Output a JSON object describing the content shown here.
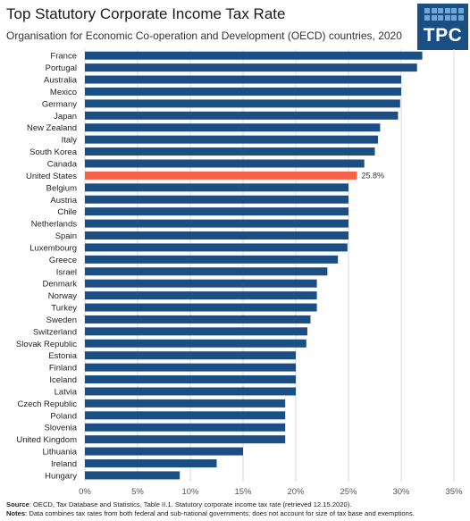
{
  "header": {
    "title": "Top Statutory Corporate Income Tax Rate",
    "subtitle": "Organisation for Economic Co-operation and Development (OECD) countries, 2020",
    "logo_text": "TPC"
  },
  "chart_data": {
    "type": "bar",
    "orientation": "horizontal",
    "categories": [
      "France",
      "Portugal",
      "Australia",
      "Mexico",
      "Germany",
      "Japan",
      "New Zealand",
      "Italy",
      "South Korea",
      "Canada",
      "United States",
      "Belgium",
      "Austria",
      "Chile",
      "Netherlands",
      "Spain",
      "Luxembourg",
      "Greece",
      "Israel",
      "Denmark",
      "Norway",
      "Turkey",
      "Sweden",
      "Switzerland",
      "Slovak Republic",
      "Estonia",
      "Finland",
      "Iceland",
      "Latvia",
      "Czech Republic",
      "Poland",
      "Slovenia",
      "United Kingdom",
      "Lithuania",
      "Ireland",
      "Hungary"
    ],
    "values": [
      32.0,
      31.5,
      30.0,
      30.0,
      29.9,
      29.7,
      28.0,
      27.8,
      27.5,
      26.5,
      25.8,
      25.0,
      25.0,
      25.0,
      25.0,
      25.0,
      24.9,
      24.0,
      23.0,
      22.0,
      22.0,
      22.0,
      21.4,
      21.1,
      21.0,
      20.0,
      20.0,
      20.0,
      20.0,
      19.0,
      19.0,
      19.0,
      19.0,
      15.0,
      12.5,
      9.0
    ],
    "highlight": {
      "category": "United States",
      "label": "25.8%"
    },
    "xticks": [
      "0%",
      "5%",
      "10%",
      "15%",
      "20%",
      "25%",
      "30%",
      "35%"
    ],
    "xlim": [
      0,
      35
    ],
    "colors": {
      "bar": "#1b4f84",
      "highlight": "#f26349",
      "grid": "#d9d9d9"
    },
    "grid": true
  },
  "footer": {
    "source_label": "Source",
    "source_text": ": OECD, Tax Database and Statistics, Table II.1. Statutory corporate income tax rate (retrieved 12.15.2020).",
    "notes_label": "Notes",
    "notes_text": ": Data combines tax rates from both federal and sub-national governments; does not account for size of tax base and exemptions."
  }
}
